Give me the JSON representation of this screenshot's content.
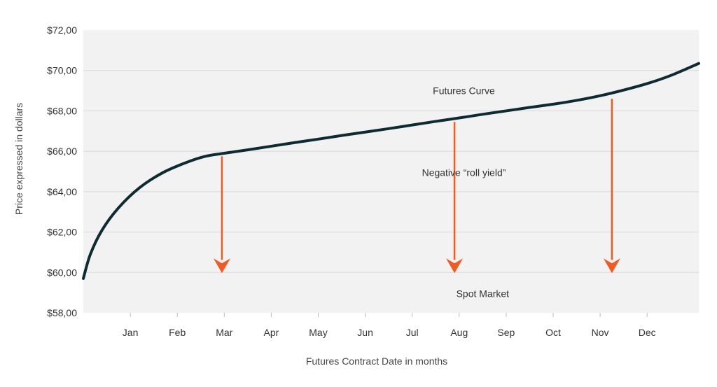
{
  "chart_data": {
    "type": "line",
    "xlabel": "Futures Contract Date in months",
    "ylabel": "Price expressed in dollars",
    "categories": [
      "Jan",
      "Feb",
      "Mar",
      "Apr",
      "May",
      "Jun",
      "Jul",
      "Aug",
      "Sep",
      "Oct",
      "Nov",
      "Dec"
    ],
    "y_tick_labels": [
      "$58,00",
      "$60,00",
      "$62,00",
      "$64,00",
      "$66,00",
      "$68,00",
      "$70,00",
      "$72,00"
    ],
    "y_ticks": [
      58,
      60,
      62,
      64,
      66,
      68,
      70,
      72
    ],
    "ylim": [
      58,
      72
    ],
    "xlim": [
      0,
      13.1
    ],
    "grid": "horizontal",
    "series": [
      {
        "x": [
          0,
          0.15,
          0.4,
          0.75,
          1.2,
          1.7,
          2.2,
          2.6,
          3.0,
          3.5,
          4.0,
          4.5,
          5.0,
          5.5,
          6.0,
          6.5,
          7.0,
          7.5,
          8.0,
          8.5,
          9.0,
          9.5,
          10.0,
          10.5,
          11.0,
          11.5,
          12.0,
          12.5,
          13.1
        ],
        "y": [
          59.7,
          60.9,
          62.1,
          63.2,
          64.2,
          64.95,
          65.45,
          65.75,
          65.9,
          66.07,
          66.25,
          66.43,
          66.6,
          66.78,
          66.95,
          67.12,
          67.3,
          67.48,
          67.65,
          67.83,
          68.0,
          68.17,
          68.33,
          68.52,
          68.75,
          69.03,
          69.35,
          69.75,
          70.35
        ],
        "color": "#0d2b30"
      }
    ],
    "arrows": [
      {
        "x": 2.95,
        "from": 65.75,
        "to": 60.0
      },
      {
        "x": 7.9,
        "from": 67.45,
        "to": 60.0
      },
      {
        "x": 11.25,
        "from": 68.6,
        "to": 60.0
      }
    ],
    "annotations": [
      {
        "text": "Futures Curve",
        "x": 8.1,
        "y": 69.0
      },
      {
        "text": "Negative “roll yield”",
        "x": 8.1,
        "y": 64.95
      },
      {
        "text": "Spot Market",
        "x": 8.5,
        "y": 58.95
      }
    ],
    "colors": {
      "plot_background": "#f2f2f2",
      "curve": "#0d2b30",
      "arrow": "#f15a22",
      "grid": "#d9d9d9"
    }
  }
}
